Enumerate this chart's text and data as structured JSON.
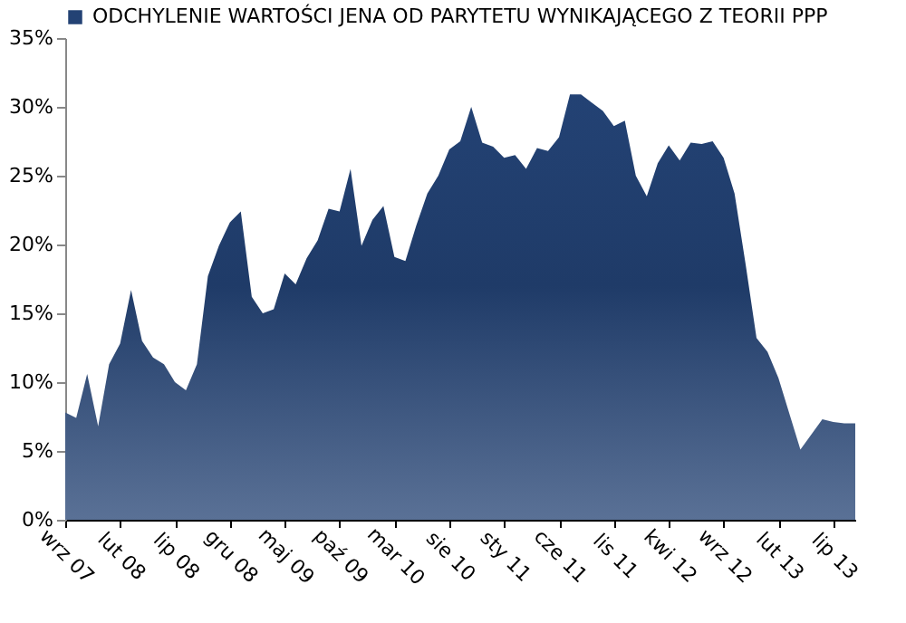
{
  "chart_data": {
    "type": "area",
    "categories": [
      "wrz 07",
      null,
      null,
      null,
      null,
      "lut 08",
      null,
      null,
      null,
      null,
      "lip 08",
      null,
      null,
      null,
      null,
      "gru 08",
      null,
      null,
      null,
      null,
      "maj 09",
      null,
      null,
      null,
      null,
      "paź 09",
      null,
      null,
      null,
      null,
      "mar 10",
      null,
      null,
      null,
      null,
      "sie 10",
      null,
      null,
      null,
      null,
      "sty 11",
      null,
      null,
      null,
      null,
      "cze 11",
      null,
      null,
      null,
      null,
      "lis 11",
      null,
      null,
      null,
      null,
      "kwi 12",
      null,
      null,
      null,
      null,
      "wrz 12",
      null,
      null,
      null,
      null,
      "lut 13",
      null,
      null,
      null,
      null,
      "lip 13",
      null,
      null
    ],
    "series": [
      {
        "name": "ODCHYLENIE WARTOŚCI JENA OD PARYTETU WYNIKAJĄCEGO Z TEORII PPP",
        "color": "#234274",
        "values": [
          7.8,
          7.4,
          10.6,
          6.8,
          11.3,
          12.8,
          16.7,
          13.0,
          11.8,
          11.3,
          10.0,
          9.4,
          11.3,
          17.7,
          19.9,
          21.6,
          22.4,
          16.2,
          15.0,
          15.3,
          17.9,
          17.1,
          19.0,
          20.3,
          22.6,
          22.4,
          25.5,
          19.9,
          21.8,
          22.8,
          19.1,
          18.8,
          21.4,
          23.7,
          25.0,
          26.9,
          27.5,
          30.0,
          27.4,
          27.1,
          26.3,
          26.5,
          25.5,
          27.0,
          26.8,
          27.8,
          30.9,
          30.9,
          30.3,
          29.7,
          28.6,
          29.0,
          25.0,
          23.5,
          25.9,
          27.2,
          26.1,
          27.4,
          27.3,
          27.5,
          26.3,
          23.7,
          18.6,
          13.2,
          12.2,
          10.3,
          7.7,
          5.1,
          6.2,
          7.3,
          7.1,
          7.0,
          7.0
        ]
      }
    ],
    "ylim": [
      0,
      35
    ],
    "yticks": [
      {
        "value": 0,
        "label": "0%"
      },
      {
        "value": 5,
        "label": "5%"
      },
      {
        "value": 10,
        "label": "10%"
      },
      {
        "value": 15,
        "label": "15%"
      },
      {
        "value": 20,
        "label": "20%"
      },
      {
        "value": 25,
        "label": "25%"
      },
      {
        "value": 30,
        "label": "30%"
      },
      {
        "value": 35,
        "label": "35%"
      }
    ],
    "legend": "top",
    "grid": false
  }
}
